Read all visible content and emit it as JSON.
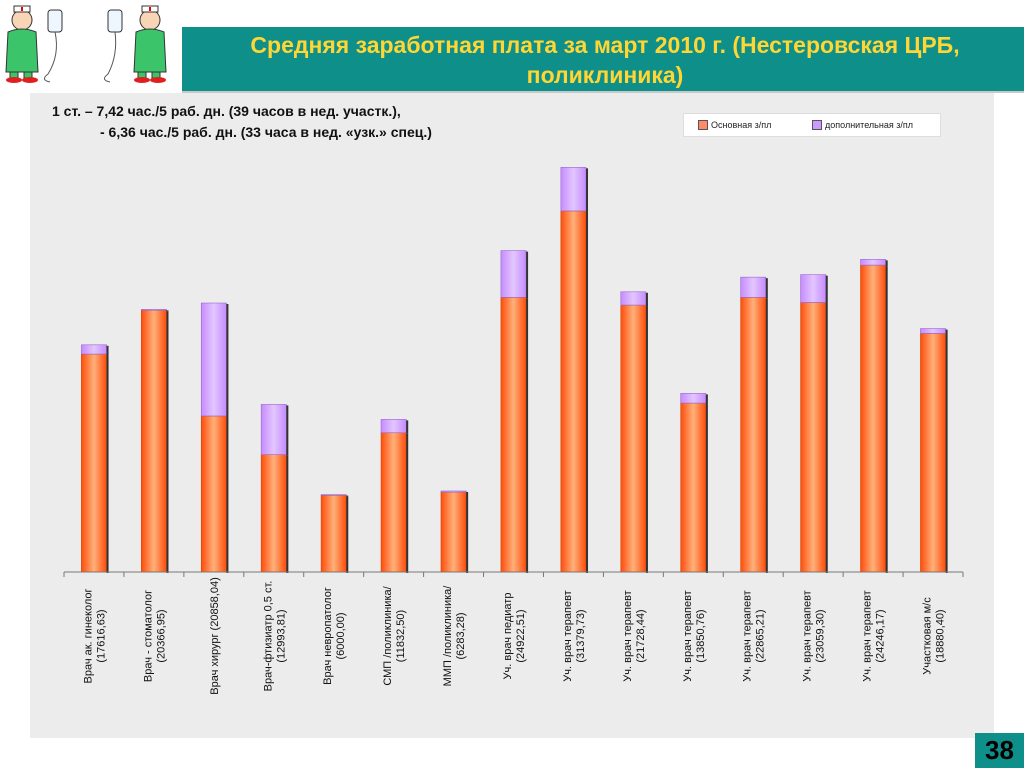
{
  "title": "Средняя заработная плата за март 2010 г. (Нестеровская ЦРБ,\nполиклиника)",
  "notes": {
    "line1": "1 ст. – 7,42 час./5 раб. дн. (39 часов в нед. участк.),",
    "line2": "- 6,36 час./5 раб. дн.  (33 часа в нед. «узк.» спец.)"
  },
  "page_number": "38",
  "colors": {
    "header": "#0f8f8a",
    "title": "#ffd633",
    "base": "#ff6a1f",
    "extra": "#cc99ff"
  },
  "chart_data": {
    "type": "bar",
    "stacked": true,
    "legend_position": "top-right",
    "categories": [
      [
        "Врач ак. гинеколог",
        "(17616,63)"
      ],
      [
        "Врач - стоматолог",
        "(20366,95)"
      ],
      [
        "Врач хирург (20858,04)"
      ],
      [
        "Врач-фтизиатр 0,5 ст.",
        "(12993,81)"
      ],
      [
        "Врач невропатолог",
        "(6000,00)"
      ],
      [
        "СМП /поликлиника/",
        "(11832,50)"
      ],
      [
        "ММП /поликлиника/",
        "(6283,28)"
      ],
      [
        "Уч. врач педиатр",
        "(24922,51)"
      ],
      [
        "Уч. врач терапевт",
        "(31379,73)"
      ],
      [
        "Уч. врач терапевт",
        "(21728,44)"
      ],
      [
        "Уч. врач терапевт",
        "(13850,76)"
      ],
      [
        "Уч. врач терапевт",
        "(22865,21)"
      ],
      [
        "Уч. врач терапевт",
        "(23059,30)"
      ],
      [
        "Уч. врач терапевт",
        "(24246,17)"
      ],
      [
        "Участковая м/с",
        "(18880,40)"
      ]
    ],
    "series": [
      {
        "name": "Основная з/пл",
        "color": "#ff6a1f",
        "values": [
          16900,
          20300,
          12100,
          9100,
          5950,
          10800,
          6200,
          21300,
          28000,
          20700,
          13100,
          21300,
          20900,
          23800,
          18500
        ]
      },
      {
        "name": "дополнительная з/пл",
        "color": "#cc99ff",
        "values": [
          717,
          67,
          8758,
          3894,
          50,
          1033,
          83,
          3623,
          3380,
          1028,
          751,
          1565,
          2159,
          446,
          380
        ]
      }
    ],
    "ylim": [
      0,
      33500
    ],
    "grid": false
  }
}
